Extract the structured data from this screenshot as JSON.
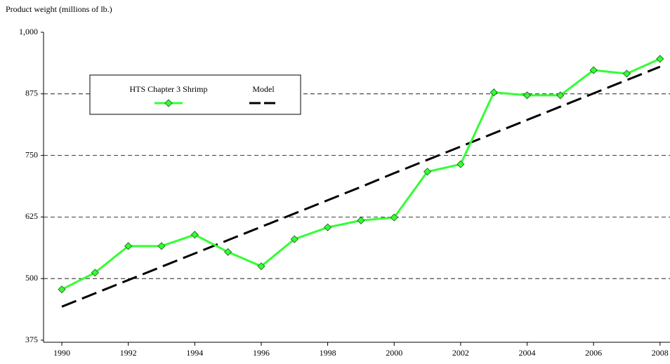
{
  "chart_data": {
    "type": "line",
    "y_label": "Product weight (millions of lb.)",
    "x": [
      1990,
      1991,
      1992,
      1993,
      1994,
      1995,
      1996,
      1997,
      1998,
      1999,
      2000,
      2001,
      2002,
      2003,
      2004,
      2005,
      2006,
      2007,
      2008
    ],
    "series": [
      {
        "name": "HTS Chapter 3 Shrimp",
        "color": "#33ff33",
        "marker": "diamond",
        "dash": "solid",
        "values": [
          478,
          512,
          566,
          566,
          589,
          554,
          525,
          580,
          604,
          618,
          624,
          717,
          732,
          878,
          872,
          872,
          923,
          916,
          946
        ]
      },
      {
        "name": "Model",
        "color": "#000000",
        "marker": "none",
        "dash": "longdash",
        "values": [
          443,
          470,
          497,
          524,
          551,
          578,
          605,
          632,
          659,
          686,
          714,
          741,
          768,
          795,
          822,
          849,
          876,
          903,
          930
        ]
      }
    ],
    "xlim": [
      1989.45,
      2008.3
    ],
    "xticks": [
      1990,
      1992,
      1994,
      1996,
      1998,
      2000,
      2002,
      2004,
      2006,
      2008
    ],
    "ylim": [
      375,
      1000
    ],
    "yticks": [
      375,
      500,
      625,
      750,
      875,
      {
        "value": 1000,
        "label": "1,000"
      }
    ],
    "grid": true,
    "legend": "upper left"
  }
}
